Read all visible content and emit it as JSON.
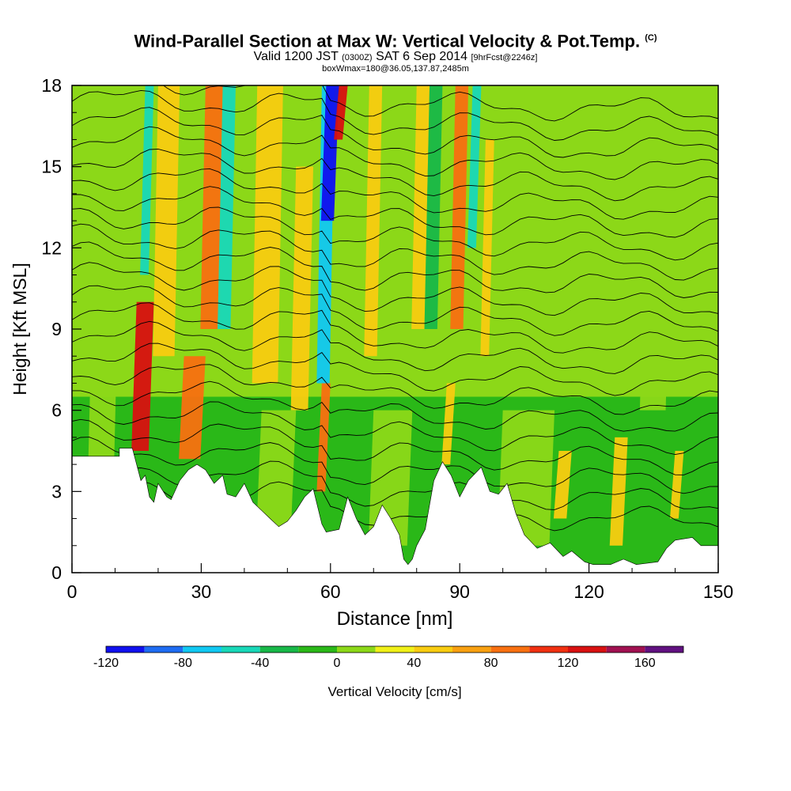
{
  "title": {
    "main": "Wind-Parallel Section at Max W: Vertical Velocity & Pot.Temp.",
    "copyright": "(C)",
    "valid_prefix": "Valid 1200 JST",
    "valid_utc": "(0300Z)",
    "valid_date": "SAT 6 Sep 2014",
    "forecast": "[9hrFcst@2246z]",
    "box": "boxWmax=180@36.05,137.87,2485m"
  },
  "chart_data": {
    "type": "heatmap",
    "xlabel": "Distance [nm]",
    "ylabel": "Height [Kft MSL]",
    "xlim": [
      0,
      150
    ],
    "ylim": [
      0,
      18
    ],
    "x_ticks": [
      0,
      30,
      60,
      90,
      120,
      150
    ],
    "y_ticks": [
      0,
      3,
      6,
      9,
      12,
      15,
      18
    ],
    "colorbar": {
      "label": "Vertical Velocity [cm/s]",
      "range": [
        -120,
        180
      ],
      "tick_values": [
        -120,
        -80,
        -40,
        0,
        40,
        80,
        120,
        160
      ],
      "colors": [
        "#1010ee",
        "#1e6cf2",
        "#10c8f2",
        "#18d8b8",
        "#18b848",
        "#2ab818",
        "#8cd818",
        "#f0f018",
        "#f8cc10",
        "#f8a010",
        "#f87010",
        "#f03010",
        "#d81010",
        "#a01050",
        "#601080"
      ]
    },
    "velocity_cells": [
      {
        "x": 15,
        "w": 4,
        "y0": 4.5,
        "y1": 10,
        "w_cms": 120
      },
      {
        "x": 26,
        "w": 5,
        "y0": 4.2,
        "y1": 8,
        "w_cms": 80
      },
      {
        "x": 20,
        "w": 5,
        "y0": 8,
        "y1": 18,
        "w_cms": 40
      },
      {
        "x": 31,
        "w": 4,
        "y0": 9,
        "y1": 18,
        "w_cms": 80
      },
      {
        "x": 35,
        "w": 3,
        "y0": 9,
        "y1": 18,
        "w_cms": -60
      },
      {
        "x": 17,
        "w": 2,
        "y0": 11,
        "y1": 18,
        "w_cms": -50
      },
      {
        "x": 43,
        "w": 6,
        "y0": 7,
        "y1": 18,
        "w_cms": 40
      },
      {
        "x": 58,
        "w": 3,
        "y0": 7,
        "y1": 18,
        "w_cms": -80
      },
      {
        "x": 59,
        "w": 3,
        "y0": 13,
        "y1": 18,
        "w_cms": -110
      },
      {
        "x": 62,
        "w": 2,
        "y0": 16,
        "y1": 18,
        "w_cms": 120
      },
      {
        "x": 58,
        "w": 2,
        "y0": 3,
        "y1": 7,
        "w_cms": 80
      },
      {
        "x": 52,
        "w": 4,
        "y0": 6,
        "y1": 15,
        "w_cms": 40
      },
      {
        "x": 69,
        "w": 3,
        "y0": 8,
        "y1": 18,
        "w_cms": 40
      },
      {
        "x": 80,
        "w": 3,
        "y0": 9,
        "y1": 18,
        "w_cms": 40
      },
      {
        "x": 83,
        "w": 3,
        "y0": 9,
        "y1": 18,
        "w_cms": -40
      },
      {
        "x": 89,
        "w": 3,
        "y0": 9,
        "y1": 18,
        "w_cms": 80
      },
      {
        "x": 93,
        "w": 2,
        "y0": 12,
        "y1": 18,
        "w_cms": -50
      },
      {
        "x": 87,
        "w": 2,
        "y0": 4,
        "y1": 7,
        "w_cms": 40
      },
      {
        "x": 96,
        "w": 2,
        "y0": 8,
        "y1": 16,
        "w_cms": 40
      },
      {
        "x": 113,
        "w": 3,
        "y0": 2,
        "y1": 4.5,
        "w_cms": 40
      },
      {
        "x": 126,
        "w": 3,
        "y0": 1,
        "y1": 5,
        "w_cms": 40
      },
      {
        "x": 140,
        "w": 2,
        "y0": 2,
        "y1": 4.5,
        "w_cms": 40
      },
      {
        "x": 120,
        "w": 8,
        "y0": 8,
        "y1": 18,
        "w_cms": 0
      },
      {
        "x": 133,
        "w": 6,
        "y0": 6,
        "y1": 13,
        "w_cms": 0
      },
      {
        "x": 5,
        "w": 6,
        "y0": 4.2,
        "y1": 12,
        "w_cms": 0
      },
      {
        "x": 44,
        "w": 8,
        "y0": 1.5,
        "y1": 6,
        "w_cms": 0
      },
      {
        "x": 70,
        "w": 9,
        "y0": 1,
        "y1": 6,
        "w_cms": 0
      },
      {
        "x": 100,
        "w": 12,
        "y0": 1,
        "y1": 6,
        "w_cms": 0
      }
    ],
    "terrain_heights_kft": [
      [
        0,
        4.3
      ],
      [
        6,
        4.3
      ],
      [
        11,
        4.3
      ],
      [
        11,
        4.6
      ],
      [
        14,
        4.6
      ],
      [
        16,
        3.4
      ],
      [
        17,
        3.6
      ],
      [
        18,
        2.8
      ],
      [
        19,
        2.6
      ],
      [
        20,
        3.3
      ],
      [
        22,
        2.8
      ],
      [
        23,
        2.7
      ],
      [
        25,
        3.4
      ],
      [
        27,
        3.8
      ],
      [
        29,
        4.0
      ],
      [
        31,
        3.8
      ],
      [
        33,
        3.3
      ],
      [
        35,
        3.6
      ],
      [
        36,
        2.9
      ],
      [
        38,
        2.8
      ],
      [
        40,
        3.3
      ],
      [
        42,
        2.6
      ],
      [
        44,
        2.3
      ],
      [
        46,
        2.0
      ],
      [
        48,
        1.7
      ],
      [
        50,
        1.9
      ],
      [
        52,
        2.3
      ],
      [
        54,
        2.8
      ],
      [
        56,
        3.1
      ],
      [
        58,
        1.8
      ],
      [
        59,
        1.5
      ],
      [
        62,
        1.6
      ],
      [
        64,
        2.8
      ],
      [
        66,
        2.0
      ],
      [
        68,
        1.4
      ],
      [
        70,
        1.7
      ],
      [
        72,
        2.5
      ],
      [
        74,
        2.0
      ],
      [
        76,
        1.4
      ],
      [
        77,
        0.5
      ],
      [
        78,
        0.3
      ],
      [
        79,
        0.5
      ],
      [
        80,
        1.0
      ],
      [
        82,
        1.6
      ],
      [
        84,
        3.4
      ],
      [
        86,
        4.1
      ],
      [
        88,
        3.6
      ],
      [
        90,
        2.8
      ],
      [
        92,
        3.4
      ],
      [
        95,
        3.9
      ],
      [
        97,
        3.0
      ],
      [
        99,
        2.9
      ],
      [
        101,
        3.3
      ],
      [
        103,
        2.2
      ],
      [
        105,
        1.4
      ],
      [
        108,
        0.9
      ],
      [
        111,
        1.1
      ],
      [
        114,
        0.6
      ],
      [
        116,
        0.8
      ],
      [
        119,
        0.4
      ],
      [
        121,
        0.3
      ],
      [
        125,
        0.3
      ],
      [
        128,
        0.5
      ],
      [
        131,
        0.3
      ],
      [
        136,
        0.4
      ],
      [
        138,
        0.9
      ],
      [
        140,
        1.2
      ],
      [
        144,
        1.3
      ],
      [
        146,
        1.0
      ],
      [
        150,
        1.0
      ]
    ],
    "isentrope_count": 22
  }
}
